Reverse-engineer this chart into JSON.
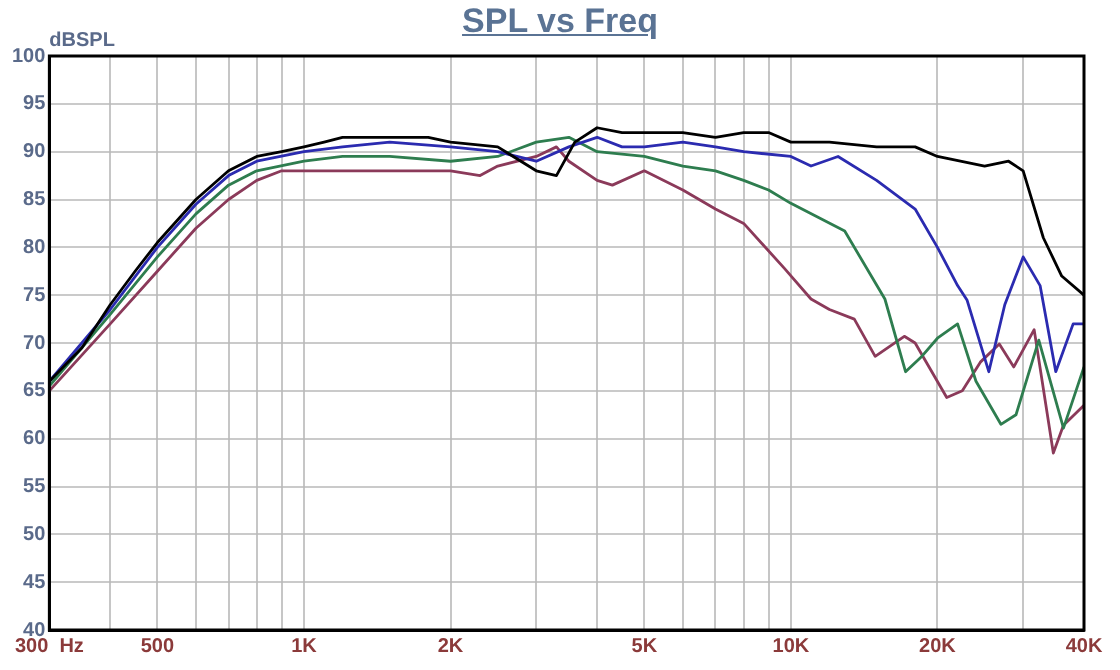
{
  "chart_data": {
    "type": "line",
    "title": "SPL vs Freq",
    "ylabel": "dBSPL",
    "log": "x",
    "grid": true,
    "xlim": [
      300,
      40000
    ],
    "ylim": [
      40,
      100
    ],
    "xticks": [
      {
        "value": 300,
        "label": "300  Hz"
      },
      {
        "value": 400,
        "label": null
      },
      500,
      {
        "value": 600,
        "label": null
      },
      {
        "value": 700,
        "label": null
      },
      {
        "value": 800,
        "label": null
      },
      {
        "value": 900,
        "label": null
      },
      {
        "value": 1000,
        "label": "1K"
      },
      {
        "value": 2000,
        "label": "2K"
      },
      {
        "value": 3000,
        "label": null
      },
      {
        "value": 4000,
        "label": null
      },
      {
        "value": 5000,
        "label": "5K"
      },
      {
        "value": 6000,
        "label": null
      },
      {
        "value": 7000,
        "label": null
      },
      {
        "value": 8000,
        "label": null
      },
      {
        "value": 9000,
        "label": null
      },
      {
        "value": 10000,
        "label": "10K"
      },
      {
        "value": 20000,
        "label": "20K"
      },
      {
        "value": 30000,
        "label": null
      },
      {
        "value": 40000,
        "label": "40K"
      }
    ],
    "yticks": [
      40,
      45,
      50,
      55,
      60,
      65,
      70,
      75,
      80,
      85,
      90,
      95,
      100
    ],
    "series": [
      {
        "color": "#000000",
        "x": [
          300,
          350,
          400,
          450,
          500,
          600,
          700,
          800,
          900,
          1000,
          1100,
          1200,
          1500,
          1800,
          2000,
          2500,
          3000,
          3300,
          3600,
          4000,
          4500,
          5000,
          6000,
          7000,
          8000,
          9000,
          10000,
          12000,
          15000,
          18000,
          20000,
          25000,
          28000,
          30000,
          33000,
          36000,
          40000
        ],
        "values": [
          66,
          69.5,
          74,
          77.5,
          80.5,
          85,
          88,
          89.5,
          90,
          90.5,
          91,
          91.5,
          91.5,
          91.5,
          91,
          90.5,
          88,
          87.5,
          91,
          92.5,
          92,
          92,
          92,
          91.5,
          92,
          92,
          91,
          91,
          90.5,
          90.5,
          89.5,
          88.5,
          89,
          88,
          81,
          77,
          75
        ]
      },
      {
        "color": "#2b2bb0",
        "x": [
          300,
          400,
          500,
          600,
          700,
          800,
          1000,
          1200,
          1500,
          2000,
          2500,
          3000,
          3500,
          4000,
          4500,
          5000,
          6000,
          7000,
          8000,
          10000,
          11000,
          12500,
          15000,
          18000,
          20000,
          22000,
          23000,
          25500,
          27500,
          30000,
          32500,
          35000,
          38000,
          40000
        ],
        "values": [
          66,
          73.5,
          80,
          84.5,
          87.5,
          89,
          90,
          90.5,
          91,
          90.5,
          90,
          89,
          90.5,
          91.5,
          90.5,
          90.5,
          91,
          90.5,
          90,
          89.5,
          88.5,
          89.5,
          87,
          84,
          80,
          76,
          74.5,
          67,
          74,
          79,
          76,
          67,
          72,
          72
        ]
      },
      {
        "color": "#2e7d4f",
        "x": [
          300,
          400,
          500,
          600,
          700,
          800,
          1000,
          1200,
          1500,
          2000,
          2500,
          3000,
          3500,
          4000,
          5000,
          6000,
          7000,
          8000,
          9000,
          10000,
          12900,
          15600,
          17200,
          18500,
          20000,
          22000,
          24000,
          27000,
          29000,
          32300,
          36300,
          40000
        ],
        "values": [
          65.5,
          73,
          79,
          83.5,
          86.5,
          88,
          89,
          89.5,
          89.5,
          89,
          89.5,
          91,
          91.5,
          90,
          89.5,
          88.5,
          88,
          87,
          86,
          84.6,
          81.7,
          74.6,
          67,
          68.5,
          70.5,
          72,
          66,
          61.5,
          62.5,
          70.3,
          61.1,
          67.5
        ]
      },
      {
        "color": "#8b3a5a",
        "x": [
          300,
          400,
          500,
          600,
          700,
          800,
          900,
          1000,
          1500,
          2000,
          2300,
          2500,
          3000,
          3300,
          3500,
          4000,
          4300,
          5000,
          6000,
          7000,
          8000,
          9700,
          11000,
          12000,
          13500,
          14900,
          17100,
          18000,
          20900,
          22500,
          24500,
          26800,
          28700,
          31600,
          34600,
          36300,
          40000
        ],
        "values": [
          65,
          72,
          77.5,
          82,
          85,
          87,
          88,
          88,
          88,
          88,
          87.5,
          88.5,
          89.5,
          90.5,
          89,
          87,
          86.5,
          88,
          86,
          84,
          82.5,
          77.8,
          74.6,
          73.5,
          72.5,
          68.6,
          70.7,
          70,
          64.3,
          65,
          68,
          69.9,
          67.5,
          71.4,
          58.5,
          61.4,
          63.5
        ]
      }
    ]
  }
}
